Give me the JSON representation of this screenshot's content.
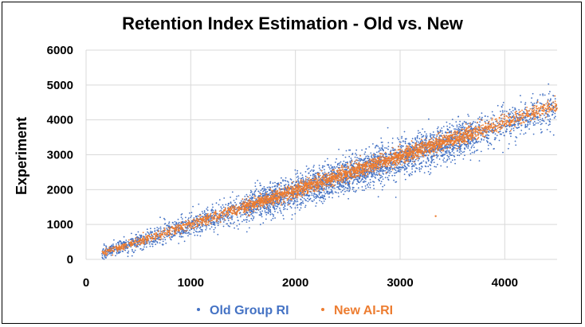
{
  "chart_data": {
    "type": "scatter",
    "title": "Retention Index Estimation - Old vs. New",
    "xlabel": "",
    "ylabel": "Experiment",
    "xlim": [
      0,
      4500
    ],
    "ylim": [
      0,
      6000
    ],
    "xticks": [
      0,
      1000,
      2000,
      3000,
      4000
    ],
    "yticks": [
      0,
      1000,
      2000,
      3000,
      4000,
      5000,
      6000
    ],
    "grid": true,
    "legend_position": "bottom",
    "series": [
      {
        "name": "Old Group RI",
        "color": "#4472C4",
        "trend": {
          "x_start": 150,
          "x_end": 4500,
          "slope": 0.96,
          "intercept": 30
        },
        "spread_std": 260,
        "point_count": 4200
      },
      {
        "name": "New AI-RI",
        "color": "#ED7D31",
        "trend": {
          "x_start": 150,
          "x_end": 4500,
          "slope": 0.98,
          "intercept": 20
        },
        "spread_std": 110,
        "point_count": 3200,
        "outliers": [
          {
            "x": 3340,
            "y": 1240
          }
        ]
      }
    ]
  }
}
